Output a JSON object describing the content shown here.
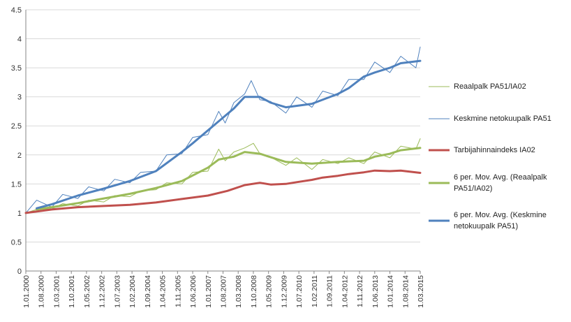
{
  "chart_data": {
    "type": "line",
    "title": "",
    "xlabel": "",
    "ylabel": "",
    "ylim": [
      0,
      4.5
    ],
    "y_ticks": [
      "0",
      "0.5",
      "1",
      "1.5",
      "2",
      "2.5",
      "3",
      "3.5",
      "4",
      "4.5"
    ],
    "grid": "horizontal",
    "legend_position": "right",
    "x_range": [
      "2000-01",
      "2015-03"
    ],
    "x_tick_labels": [
      "1.01.2000",
      "1.08.2000",
      "1.03.2001",
      "1.10.2001",
      "1.05.2002",
      "1.12.2002",
      "1.07.2003",
      "1.02.2004",
      "1.09.2004",
      "1.04.2005",
      "1.11.2005",
      "1.06.2006",
      "1.01.2007",
      "1.08.2007",
      "1.03.2008",
      "1.10.2008",
      "1.05.2009",
      "1.12.2009",
      "1.07.2010",
      "1.02.2011",
      "1.09.2011",
      "1.04.2012",
      "1.11.2012",
      "1.06.2013",
      "1.01.2014",
      "1.08.2014",
      "1.03.2015"
    ],
    "series_points_note_x_format": "YYYY-MM",
    "series": [
      {
        "name": "Reaalpalk PA51/IA02",
        "color": "#9bbb59",
        "style": "thin",
        "points": [
          [
            "2000-01",
            1.0
          ],
          [
            "2000-06",
            1.06
          ],
          [
            "2001-01",
            1.07
          ],
          [
            "2001-06",
            1.16
          ],
          [
            "2002-01",
            1.12
          ],
          [
            "2002-06",
            1.22
          ],
          [
            "2003-01",
            1.19
          ],
          [
            "2003-06",
            1.3
          ],
          [
            "2004-01",
            1.28
          ],
          [
            "2004-06",
            1.38
          ],
          [
            "2005-01",
            1.4
          ],
          [
            "2005-06",
            1.52
          ],
          [
            "2006-01",
            1.5
          ],
          [
            "2006-06",
            1.7
          ],
          [
            "2007-01",
            1.72
          ],
          [
            "2007-06",
            2.1
          ],
          [
            "2007-09",
            1.9
          ],
          [
            "2008-01",
            2.05
          ],
          [
            "2008-06",
            2.12
          ],
          [
            "2008-10",
            2.2
          ],
          [
            "2009-01",
            2.02
          ],
          [
            "2009-06",
            1.96
          ],
          [
            "2010-01",
            1.82
          ],
          [
            "2010-06",
            1.95
          ],
          [
            "2011-01",
            1.75
          ],
          [
            "2011-06",
            1.92
          ],
          [
            "2012-01",
            1.85
          ],
          [
            "2012-06",
            1.95
          ],
          [
            "2013-01",
            1.85
          ],
          [
            "2013-06",
            2.05
          ],
          [
            "2014-01",
            1.95
          ],
          [
            "2014-06",
            2.15
          ],
          [
            "2015-01",
            2.1
          ],
          [
            "2015-03",
            2.28
          ]
        ]
      },
      {
        "name": "Keskmine netokuupalk PA51",
        "color": "#4f81bd",
        "style": "thin",
        "points": [
          [
            "2000-01",
            1.0
          ],
          [
            "2000-06",
            1.22
          ],
          [
            "2001-01",
            1.1
          ],
          [
            "2001-06",
            1.32
          ],
          [
            "2002-01",
            1.25
          ],
          [
            "2002-06",
            1.45
          ],
          [
            "2003-01",
            1.38
          ],
          [
            "2003-06",
            1.58
          ],
          [
            "2004-01",
            1.52
          ],
          [
            "2004-06",
            1.7
          ],
          [
            "2005-01",
            1.72
          ],
          [
            "2005-06",
            2.0
          ],
          [
            "2006-01",
            2.02
          ],
          [
            "2006-06",
            2.3
          ],
          [
            "2007-01",
            2.35
          ],
          [
            "2007-06",
            2.75
          ],
          [
            "2007-09",
            2.55
          ],
          [
            "2008-01",
            2.9
          ],
          [
            "2008-06",
            3.05
          ],
          [
            "2008-09",
            3.28
          ],
          [
            "2009-01",
            2.95
          ],
          [
            "2009-06",
            2.92
          ],
          [
            "2010-01",
            2.72
          ],
          [
            "2010-06",
            3.0
          ],
          [
            "2011-01",
            2.82
          ],
          [
            "2011-06",
            3.1
          ],
          [
            "2012-01",
            3.02
          ],
          [
            "2012-06",
            3.3
          ],
          [
            "2013-01",
            3.3
          ],
          [
            "2013-06",
            3.6
          ],
          [
            "2014-01",
            3.42
          ],
          [
            "2014-06",
            3.7
          ],
          [
            "2015-01",
            3.5
          ],
          [
            "2015-03",
            3.86
          ]
        ]
      },
      {
        "name": "Tarbijahinnaindeks IA02",
        "color": "#c0504d",
        "style": "thick",
        "points": [
          [
            "2000-01",
            1.0
          ],
          [
            "2001-01",
            1.06
          ],
          [
            "2002-01",
            1.1
          ],
          [
            "2003-01",
            1.12
          ],
          [
            "2004-01",
            1.14
          ],
          [
            "2005-01",
            1.18
          ],
          [
            "2006-01",
            1.24
          ],
          [
            "2007-01",
            1.3
          ],
          [
            "2007-10",
            1.38
          ],
          [
            "2008-06",
            1.48
          ],
          [
            "2009-01",
            1.52
          ],
          [
            "2009-06",
            1.49
          ],
          [
            "2010-01",
            1.5
          ],
          [
            "2010-06",
            1.53
          ],
          [
            "2011-01",
            1.57
          ],
          [
            "2011-06",
            1.61
          ],
          [
            "2012-01",
            1.64
          ],
          [
            "2012-06",
            1.67
          ],
          [
            "2013-01",
            1.7
          ],
          [
            "2013-06",
            1.73
          ],
          [
            "2014-01",
            1.72
          ],
          [
            "2014-06",
            1.73
          ],
          [
            "2015-03",
            1.69
          ]
        ]
      },
      {
        "name": "6 per. Mov. Avg. (Reaalpalk PA51/IA02)",
        "color": "#9bbb59",
        "style": "thick",
        "points": [
          [
            "2000-06",
            1.06
          ],
          [
            "2001-01",
            1.1
          ],
          [
            "2002-01",
            1.17
          ],
          [
            "2003-01",
            1.25
          ],
          [
            "2004-01",
            1.33
          ],
          [
            "2005-01",
            1.43
          ],
          [
            "2006-01",
            1.55
          ],
          [
            "2007-01",
            1.78
          ],
          [
            "2007-06",
            1.92
          ],
          [
            "2008-01",
            1.97
          ],
          [
            "2008-06",
            2.05
          ],
          [
            "2009-01",
            2.02
          ],
          [
            "2009-06",
            1.96
          ],
          [
            "2010-01",
            1.88
          ],
          [
            "2011-01",
            1.85
          ],
          [
            "2012-01",
            1.88
          ],
          [
            "2013-01",
            1.9
          ],
          [
            "2013-06",
            1.97
          ],
          [
            "2014-01",
            2.02
          ],
          [
            "2014-06",
            2.08
          ],
          [
            "2015-03",
            2.12
          ]
        ]
      },
      {
        "name": "6 per. Mov. Avg. (Keskmine netokuupalk PA51)",
        "color": "#4f81bd",
        "style": "thick",
        "points": [
          [
            "2000-06",
            1.08
          ],
          [
            "2001-01",
            1.15
          ],
          [
            "2002-01",
            1.3
          ],
          [
            "2003-01",
            1.42
          ],
          [
            "2004-01",
            1.55
          ],
          [
            "2005-01",
            1.72
          ],
          [
            "2006-01",
            2.05
          ],
          [
            "2006-06",
            2.2
          ],
          [
            "2007-06",
            2.58
          ],
          [
            "2008-01",
            2.8
          ],
          [
            "2008-06",
            3.0
          ],
          [
            "2009-01",
            3.0
          ],
          [
            "2009-06",
            2.9
          ],
          [
            "2010-01",
            2.82
          ],
          [
            "2011-01",
            2.88
          ],
          [
            "2012-01",
            3.05
          ],
          [
            "2012-06",
            3.15
          ],
          [
            "2013-01",
            3.35
          ],
          [
            "2013-06",
            3.42
          ],
          [
            "2014-01",
            3.5
          ],
          [
            "2014-06",
            3.58
          ],
          [
            "2015-03",
            3.62
          ]
        ]
      }
    ]
  }
}
